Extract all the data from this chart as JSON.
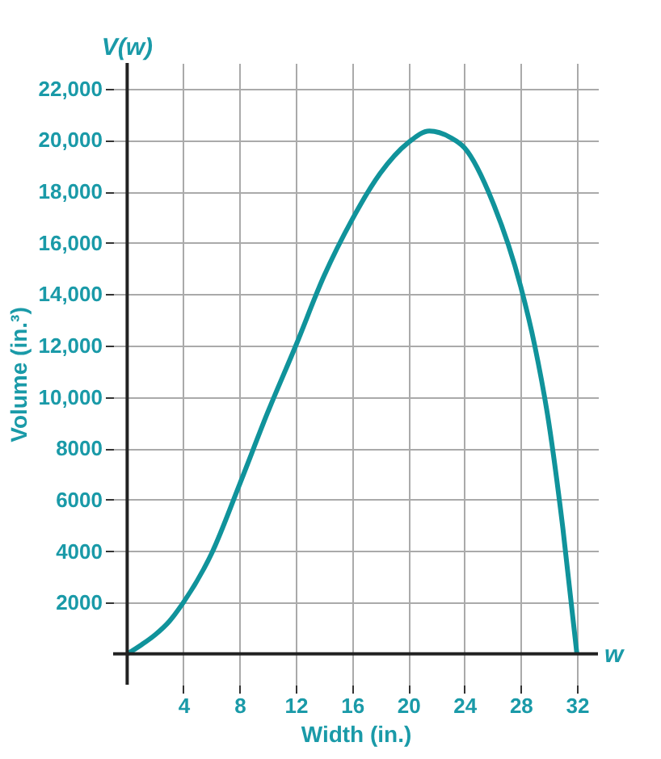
{
  "chart_data": {
    "type": "line",
    "xlabel": "Width (in.)",
    "ylabel": "Volume (in.³)",
    "annotations": [
      "V(w)",
      "w"
    ],
    "x": [
      0,
      1,
      2,
      3,
      4,
      6,
      8,
      10,
      12,
      14,
      16,
      18,
      20,
      21.5,
      23,
      24,
      26,
      28,
      29,
      30,
      31,
      32
    ],
    "series": [
      {
        "color": "#10939b",
        "values": [
          0,
          350,
          750,
          1270,
          2000,
          3900,
          6600,
          9400,
          12000,
          14700,
          16900,
          18700,
          19900,
          20350,
          20100,
          19700,
          17600,
          14300,
          12000,
          9000,
          4900,
          0
        ]
      }
    ],
    "xlim": [
      -1,
      33.5
    ],
    "ylim": [
      -1200,
      23000
    ],
    "xticks": [
      4,
      8,
      12,
      16,
      20,
      24,
      28,
      32
    ],
    "yticks": [
      {
        "value": 2000,
        "label": "2000"
      },
      {
        "value": 4000,
        "label": "4000"
      },
      {
        "value": 6000,
        "label": "6000"
      },
      {
        "value": 8000,
        "label": "8000"
      },
      {
        "value": 10000,
        "label": "10,000"
      },
      {
        "value": 12000,
        "label": "12,000"
      },
      {
        "value": 14000,
        "label": "14,000"
      },
      {
        "value": 16000,
        "label": "16,000"
      },
      {
        "value": 18000,
        "label": "18,000"
      },
      {
        "value": 20000,
        "label": "20,000"
      },
      {
        "value": 22000,
        "label": "22,000"
      }
    ],
    "grid": true,
    "marker": "none",
    "line_style": "solid"
  }
}
